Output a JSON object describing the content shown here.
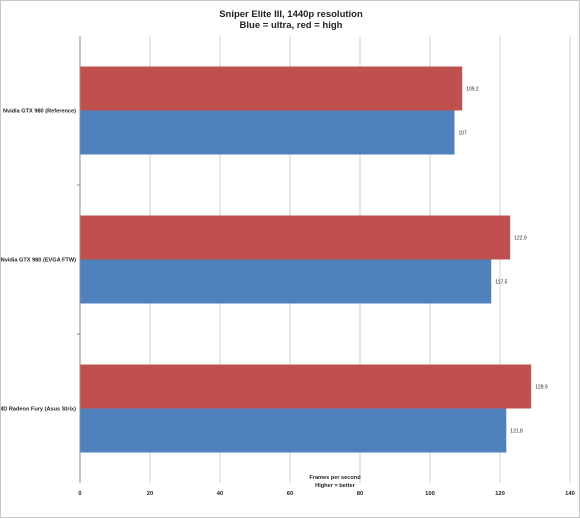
{
  "chart_data": {
    "type": "bar",
    "orientation": "horizontal",
    "title": "Sniper Elite III, 1440p resolution",
    "subtitle": "Blue = ultra, red = high",
    "xlabel": "Frames per second",
    "xlabel_note": "Higher = better",
    "ylabel": "",
    "xlim": [
      0,
      140
    ],
    "xticks": [
      0,
      20,
      40,
      60,
      80,
      100,
      120,
      140
    ],
    "grid": true,
    "categories": [
      "Nvidia GTX 980 (Reference)",
      "Nvidia GTX 980 (EVGA FTW)",
      "AMD Radeon Fury (Asus Strix)"
    ],
    "series": [
      {
        "name": "",
        "color": "#c0504d",
        "values": [
          109.2,
          122.9,
          128.9
        ]
      },
      {
        "name": "",
        "color": "#4f81bd",
        "values": [
          107,
          117.5,
          121.8
        ]
      }
    ]
  }
}
